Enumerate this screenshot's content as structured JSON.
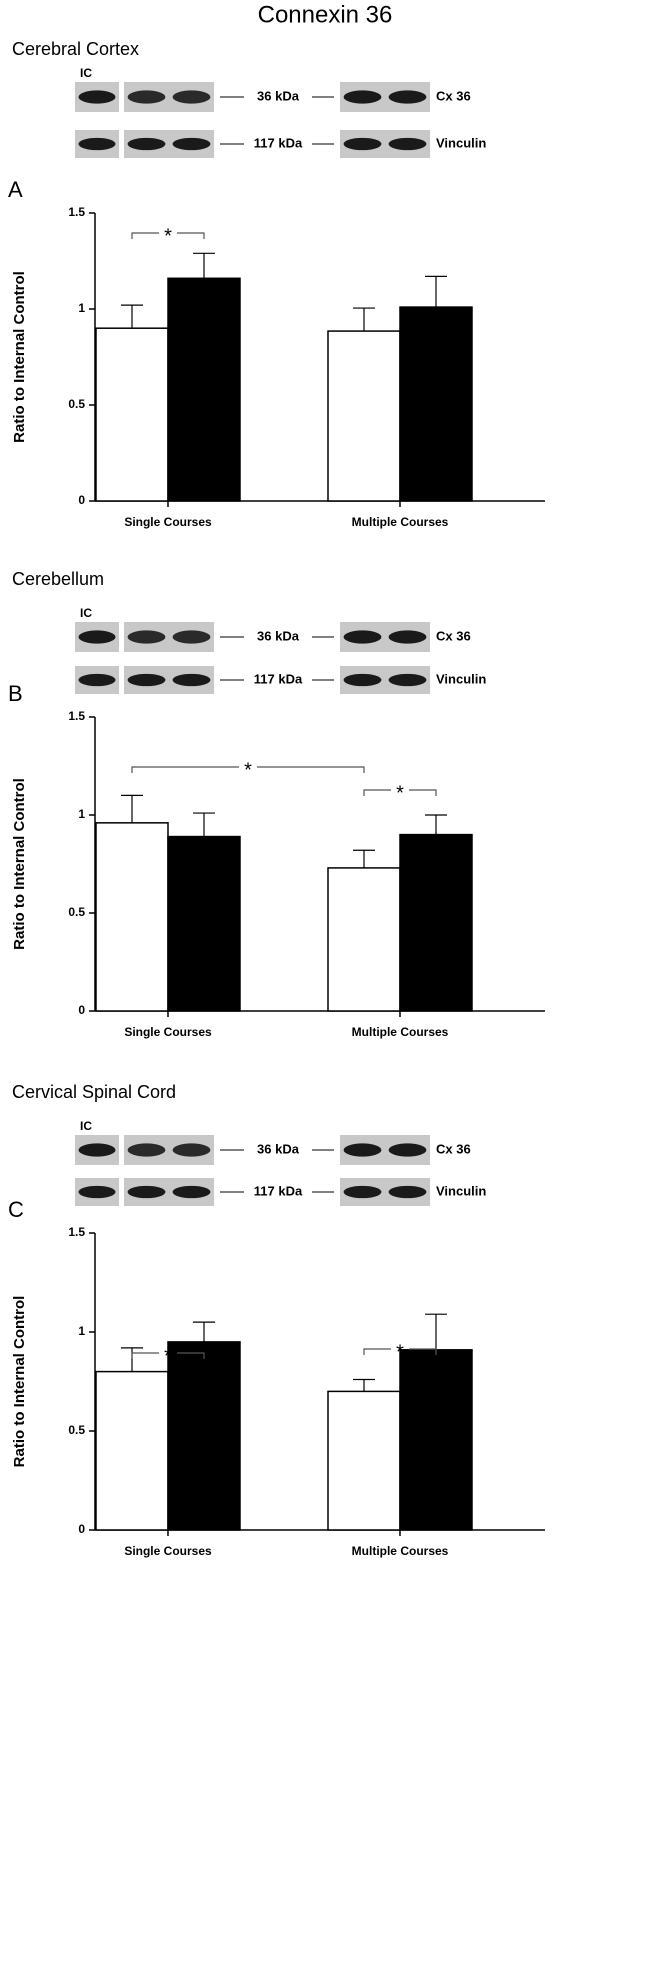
{
  "title": "Connexin 36",
  "chart_data": [
    {
      "type": "bar",
      "section": "Cerebral Cortex",
      "panel": "A",
      "blot_labels": [
        "IC",
        "36 kDa",
        "117 kDa",
        "Cx 36",
        "Vinculin"
      ],
      "ylabel": "Ratio to Internal Control",
      "categories": [
        "Single Courses",
        "Multiple Courses"
      ],
      "series": [
        {
          "color": "#ffffff",
          "values": [
            0.9,
            0.885
          ],
          "errors": [
            0.12,
            0.12
          ]
        },
        {
          "color": "#000000",
          "values": [
            1.16,
            1.01
          ],
          "errors": [
            0.13,
            0.16
          ]
        }
      ],
      "ylim": [
        0,
        1.5
      ],
      "yticks": [
        0,
        0.5,
        1,
        1.5
      ],
      "annotations": [
        "*"
      ]
    },
    {
      "type": "bar",
      "section": "Cerebellum",
      "panel": "B",
      "blot_labels": [
        "IC",
        "36 kDa",
        "117 kDa",
        "Cx 36",
        "Vinculin"
      ],
      "ylabel": "Ratio to Internal Control",
      "categories": [
        "Single Courses",
        "Multiple Courses"
      ],
      "series": [
        {
          "color": "#ffffff",
          "values": [
            0.96,
            0.73
          ],
          "errors": [
            0.14,
            0.09
          ]
        },
        {
          "color": "#000000",
          "values": [
            0.89,
            0.9
          ],
          "errors": [
            0.12,
            0.1
          ]
        }
      ],
      "ylim": [
        0,
        1.5
      ],
      "yticks": [
        0,
        0.5,
        1,
        1.5
      ],
      "annotations": [
        "*",
        "*"
      ]
    },
    {
      "type": "bar",
      "section": "Cervical Spinal Cord",
      "panel": "C",
      "blot_labels": [
        "IC",
        "36 kDa",
        "117 kDa",
        "Cx 36",
        "Vinculin"
      ],
      "ylabel": "Ratio to Internal Control",
      "categories": [
        "Single Courses",
        "Multiple Courses"
      ],
      "series": [
        {
          "color": "#ffffff",
          "values": [
            0.8,
            0.7
          ],
          "errors": [
            0.12,
            0.06
          ]
        },
        {
          "color": "#000000",
          "values": [
            0.95,
            0.91
          ],
          "errors": [
            0.1,
            0.18
          ]
        }
      ],
      "ylim": [
        0,
        1.5
      ],
      "yticks": [
        0,
        0.5,
        1,
        1.5
      ],
      "annotations": [
        "*",
        "*"
      ]
    }
  ]
}
